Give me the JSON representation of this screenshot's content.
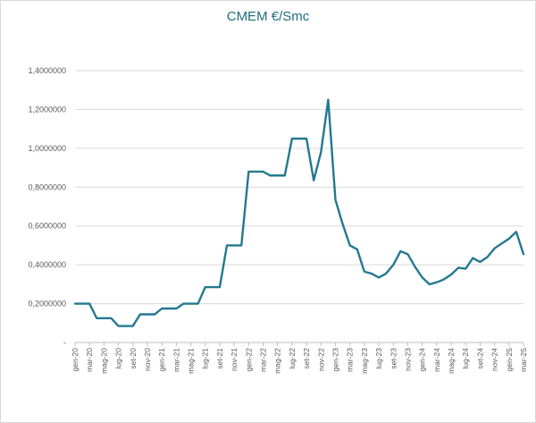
{
  "chart_data": {
    "type": "line",
    "title": "CMEM €/Smc",
    "xlabel": "",
    "ylabel": "",
    "ylim": [
      0,
      1.4
    ],
    "y_ticks": [
      0,
      0.2,
      0.4,
      0.6,
      0.8,
      1.0,
      1.2,
      1.4
    ],
    "y_tick_labels": [
      "-",
      "0,2000000",
      "0,4000000",
      "0,6000000",
      "0,8000000",
      "1,0000000",
      "1,2000000",
      "1,4000000"
    ],
    "x_tick_labels": [
      "gen-20",
      "mar-20",
      "mag-20",
      "lug-20",
      "set-20",
      "nov-20",
      "gen-21",
      "mar-21",
      "mag-21",
      "lug-21",
      "set-21",
      "nov-21",
      "gen-22",
      "mar-22",
      "mag-22",
      "lug-22",
      "set-22",
      "nov-22",
      "gen-23",
      "mar-23",
      "mag-23",
      "lug-23",
      "set-23",
      "nov-23",
      "gen-24",
      "mar-24",
      "mag-24",
      "lug-24",
      "set-24",
      "nov-24",
      "gen-25",
      "mar-25"
    ],
    "x": [
      "gen-20",
      "feb-20",
      "mar-20",
      "apr-20",
      "mag-20",
      "giu-20",
      "lug-20",
      "ago-20",
      "set-20",
      "ott-20",
      "nov-20",
      "dic-20",
      "gen-21",
      "feb-21",
      "mar-21",
      "apr-21",
      "mag-21",
      "giu-21",
      "lug-21",
      "ago-21",
      "set-21",
      "ott-21",
      "nov-21",
      "dic-21",
      "gen-22",
      "feb-22",
      "mar-22",
      "apr-22",
      "mag-22",
      "giu-22",
      "lug-22",
      "ago-22",
      "set-22",
      "ott-22",
      "nov-22",
      "dic-22",
      "gen-23",
      "feb-23",
      "mar-23",
      "apr-23",
      "mag-23",
      "giu-23",
      "lug-23",
      "ago-23",
      "set-23",
      "ott-23",
      "nov-23",
      "dic-23",
      "gen-24",
      "feb-24",
      "mar-24",
      "apr-24",
      "mag-24",
      "giu-24",
      "lug-24",
      "ago-24",
      "set-24",
      "ott-24",
      "nov-24",
      "dic-24",
      "gen-25",
      "feb-25",
      "mar-25"
    ],
    "series": [
      {
        "color": "#237990",
        "values": [
          0.2,
          0.2,
          0.2,
          0.125,
          0.125,
          0.125,
          0.085,
          0.085,
          0.085,
          0.145,
          0.145,
          0.145,
          0.175,
          0.175,
          0.175,
          0.2,
          0.2,
          0.2,
          0.285,
          0.285,
          0.285,
          0.5,
          0.5,
          0.5,
          0.88,
          0.88,
          0.88,
          0.86,
          0.86,
          0.86,
          1.05,
          1.05,
          1.05,
          0.835,
          0.98,
          1.25,
          0.735,
          0.61,
          0.5,
          0.48,
          0.365,
          0.355,
          0.335,
          0.355,
          0.4,
          0.47,
          0.455,
          0.39,
          0.335,
          0.3,
          0.31,
          0.325,
          0.35,
          0.385,
          0.38,
          0.435,
          0.415,
          0.44,
          0.485,
          0.51,
          0.535,
          0.57,
          0.455
        ]
      }
    ],
    "grid": "horizontal",
    "legend": "none"
  }
}
